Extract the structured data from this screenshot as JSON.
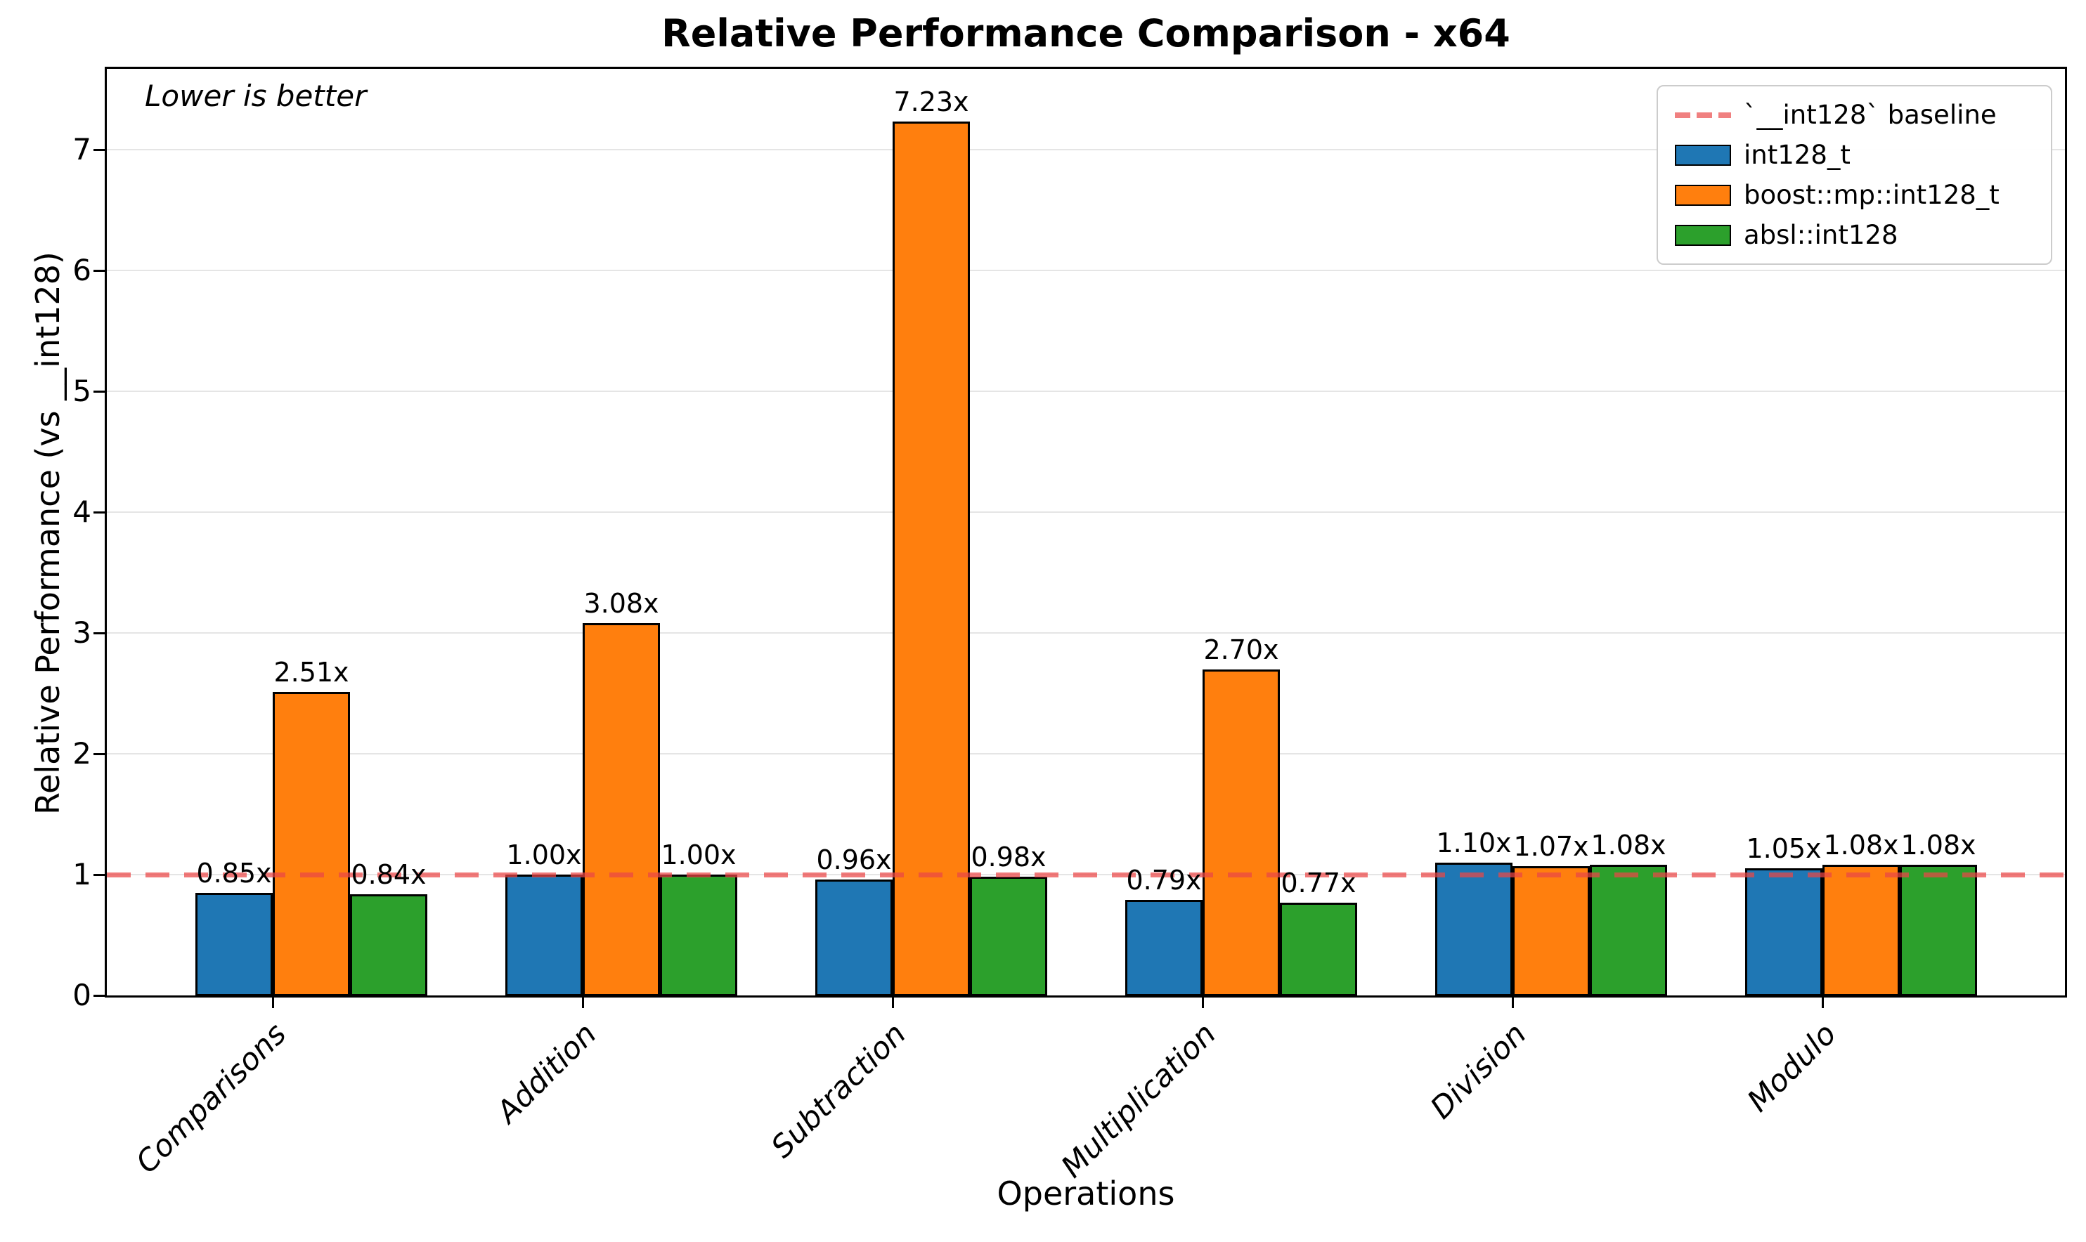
{
  "title": "Relative Performance Comparison - x64",
  "annotation": "Lower is better",
  "axes": {
    "x_label": "Operations",
    "y_label": "Relative Performance (vs __int128)",
    "y_ticks": [
      "0",
      "1",
      "2",
      "3",
      "4",
      "5",
      "6",
      "7"
    ],
    "grid": "horizontal-on"
  },
  "legend": {
    "position": "upper-right",
    "items": [
      {
        "label": "`__int128` baseline",
        "handle": "dashed-line",
        "color": "#f08080"
      },
      {
        "label": "int128_t",
        "handle": "patch",
        "color": "#1f77b4"
      },
      {
        "label": "boost::mp::int128_t",
        "handle": "patch",
        "color": "#ff7f0e"
      },
      {
        "label": "absl::int128",
        "handle": "patch",
        "color": "#2ca02c"
      }
    ]
  },
  "chart_data": {
    "type": "bar",
    "title": "Relative Performance Comparison - x64",
    "xlabel": "Operations",
    "ylabel": "Relative Performance (vs __int128)",
    "ylim": [
      0,
      7.67
    ],
    "grid": true,
    "legend_position": "upper right",
    "categories": [
      "Comparisons",
      "Addition",
      "Subtraction",
      "Multiplication",
      "Division",
      "Modulo"
    ],
    "series": [
      {
        "name": "int128_t",
        "color": "#1f77b4",
        "values": [
          0.85,
          1.0,
          0.96,
          0.79,
          1.1,
          1.05
        ],
        "labels": [
          "0.85x",
          "1.00x",
          "0.96x",
          "0.79x",
          "1.10x",
          "1.05x"
        ]
      },
      {
        "name": "boost::mp::int128_t",
        "color": "#ff7f0e",
        "values": [
          2.51,
          3.08,
          7.23,
          2.7,
          1.07,
          1.08
        ],
        "labels": [
          "2.51x",
          "3.08x",
          "7.23x",
          "2.70x",
          "1.07x",
          "1.08x"
        ]
      },
      {
        "name": "absl::int128",
        "color": "#2ca02c",
        "values": [
          0.84,
          1.0,
          0.98,
          0.77,
          1.08,
          1.08
        ],
        "labels": [
          "0.84x",
          "1.00x",
          "0.98x",
          "0.77x",
          "1.08x",
          "1.08x"
        ]
      }
    ],
    "baseline": {
      "label": "`__int128` baseline",
      "value": 1.0,
      "style": "dashed",
      "color": "#f08080"
    }
  }
}
